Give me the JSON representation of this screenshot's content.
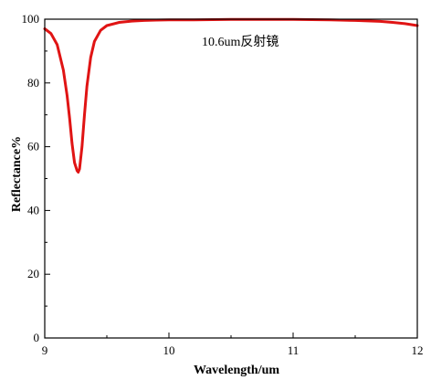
{
  "chart_data": {
    "type": "line",
    "title": "",
    "xlabel": "Wavelength/um",
    "ylabel": "Reflectance%",
    "xlim": [
      9,
      12
    ],
    "ylim": [
      0,
      100
    ],
    "x_ticks": [
      9,
      10,
      11,
      12
    ],
    "y_ticks": [
      0,
      20,
      40,
      60,
      80,
      100
    ],
    "grid": false,
    "annotations": [
      "10.6um反射镜"
    ],
    "colors": {
      "line": "#e01414",
      "axis": "#000000"
    },
    "series": [
      {
        "x": [
          9.0,
          9.05,
          9.1,
          9.15,
          9.18,
          9.2,
          9.22,
          9.24,
          9.26,
          9.27,
          9.28,
          9.3,
          9.32,
          9.34,
          9.37,
          9.4,
          9.45,
          9.5,
          9.6,
          9.7,
          9.8,
          9.9,
          10.0,
          10.2,
          10.5,
          10.8,
          11.0,
          11.3,
          11.5,
          11.7,
          11.8,
          11.9,
          12.0
        ],
        "y": [
          97,
          95.5,
          92,
          84,
          76,
          69,
          61,
          55,
          52.5,
          52,
          53,
          60,
          70,
          79,
          88,
          93,
          96.5,
          98,
          99,
          99.4,
          99.6,
          99.7,
          99.8,
          99.8,
          99.9,
          99.9,
          99.9,
          99.8,
          99.6,
          99.3,
          99.0,
          98.6,
          98.0
        ]
      }
    ]
  }
}
